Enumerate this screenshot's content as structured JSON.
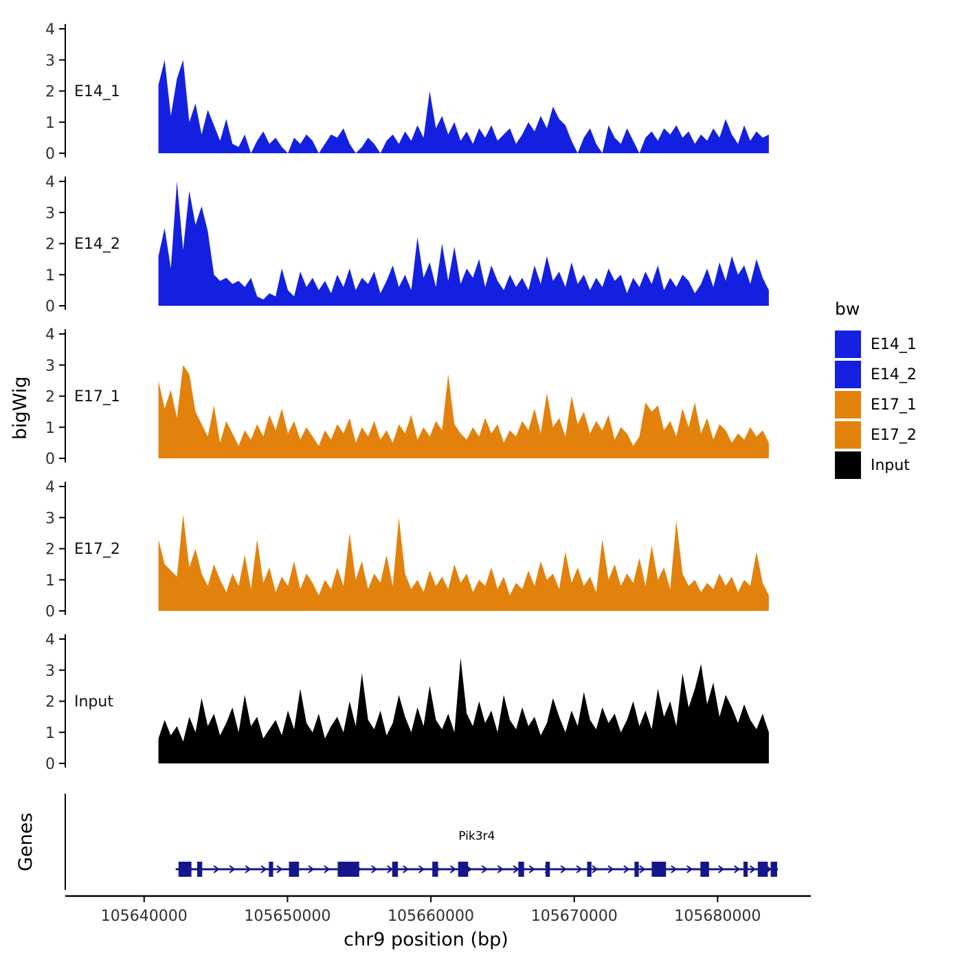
{
  "figure": {
    "y_axis_label": "bigWig",
    "genes_axis_label": "Genes",
    "x_axis_label": "chr9 position (bp)",
    "legend": {
      "title": "bw",
      "entries": [
        {
          "label": "E14_1",
          "color": "#1420E0"
        },
        {
          "label": "E14_2",
          "color": "#1420E0"
        },
        {
          "label": "E17_1",
          "color": "#E2820D"
        },
        {
          "label": "E17_2",
          "color": "#E2820D"
        },
        {
          "label": "Input",
          "color": "#000000"
        }
      ]
    }
  },
  "chart_data": {
    "type": "area",
    "title": "",
    "xlabel": "chr9 position (bp)",
    "ylabel": "bigWig",
    "x_domain": [
      105634500,
      105686500
    ],
    "x_ticks": [
      105640000,
      105650000,
      105660000,
      105670000,
      105680000
    ],
    "x_tick_labels": [
      "105640000",
      "105650000",
      "105660000",
      "105670000",
      "105680000"
    ],
    "y_ticks": [
      0,
      1,
      2,
      3,
      4
    ],
    "ylim": [
      0,
      4.3
    ],
    "grid": false,
    "legend_position": "right",
    "x_start": 105641000,
    "x_step": 430,
    "series": [
      {
        "name": "E14_1",
        "color": "#1420E0",
        "values": [
          2.2,
          3,
          1.2,
          2.4,
          3,
          1,
          1.6,
          0.6,
          1.4,
          0.9,
          0.4,
          1.1,
          0.3,
          0.2,
          0.6,
          0,
          0.4,
          0.7,
          0.3,
          0.5,
          0.2,
          0,
          0.5,
          0.3,
          0.6,
          0.4,
          0,
          0.3,
          0.6,
          0.5,
          0.8,
          0.3,
          0,
          0.2,
          0.5,
          0.3,
          0,
          0.4,
          0.6,
          0.3,
          0.7,
          0.4,
          0.9,
          0.5,
          2,
          0.8,
          1.2,
          0.6,
          1,
          0.4,
          0.7,
          0.3,
          0.8,
          0.5,
          0.9,
          0.4,
          0.6,
          0.8,
          0.3,
          0.6,
          1,
          0.7,
          1.2,
          0.8,
          1.5,
          1.1,
          0.9,
          0.4,
          0,
          0.5,
          0.8,
          0.3,
          0,
          0.9,
          0.5,
          0.3,
          0.8,
          0.4,
          0,
          0.5,
          0.7,
          0.4,
          0.8,
          0.6,
          0.9,
          0.5,
          0.7,
          0.3,
          0.6,
          0.4,
          0.8,
          0.5,
          1.1,
          0.6,
          0.3,
          0.9,
          0.4,
          0.7,
          0.5,
          0.6
        ]
      },
      {
        "name": "E14_2",
        "color": "#1420E0",
        "values": [
          1.6,
          2.5,
          1.2,
          4,
          1.8,
          3.7,
          2.6,
          3.2,
          2.4,
          1,
          0.8,
          0.9,
          0.7,
          0.8,
          0.6,
          0.9,
          0.3,
          0.2,
          0.4,
          0.3,
          1.2,
          0.5,
          0.3,
          1.1,
          0.6,
          0.9,
          0.5,
          0.8,
          0.4,
          1,
          0.6,
          1.2,
          0.5,
          0.9,
          0.7,
          1.1,
          0.4,
          0.8,
          1.3,
          0.6,
          1,
          0.5,
          2.2,
          0.9,
          1.4,
          0.6,
          2,
          0.8,
          1.9,
          0.7,
          1.2,
          0.9,
          1.5,
          0.6,
          1.3,
          0.8,
          0.5,
          1,
          0.6,
          0.9,
          0.5,
          1.3,
          0.7,
          1.6,
          0.8,
          1.1,
          0.6,
          1.4,
          0.7,
          1,
          0.5,
          0.9,
          0.6,
          1.2,
          0.8,
          1,
          0.4,
          0.9,
          0.6,
          1.1,
          0.7,
          1.3,
          0.5,
          0.9,
          0.6,
          1,
          0.8,
          0.4,
          0.7,
          1.2,
          0.6,
          1.4,
          0.8,
          1.6,
          1,
          1.3,
          0.7,
          1.5,
          0.9,
          0.5
        ]
      },
      {
        "name": "E17_1",
        "color": "#E2820D",
        "values": [
          2.5,
          1.6,
          2.2,
          1.3,
          3,
          2.7,
          1.5,
          1.1,
          0.7,
          1.7,
          0.5,
          1.2,
          0.8,
          0.4,
          0.9,
          0.6,
          1.1,
          0.7,
          1.4,
          0.9,
          1.6,
          0.8,
          1.2,
          0.6,
          1,
          0.7,
          0.4,
          0.9,
          0.6,
          1.1,
          0.8,
          1.3,
          0.5,
          1,
          0.7,
          1.2,
          0.6,
          0.9,
          0.5,
          1.1,
          0.8,
          1.4,
          0.6,
          1,
          0.7,
          1.2,
          0.9,
          2.7,
          1.1,
          0.8,
          0.6,
          1,
          0.7,
          1.3,
          0.8,
          1.1,
          0.5,
          0.9,
          0.7,
          1.2,
          0.9,
          1.6,
          0.8,
          2.1,
          1,
          1.3,
          0.7,
          2,
          1.1,
          1.5,
          0.8,
          1.2,
          0.9,
          1.4,
          0.6,
          1,
          0.8,
          0.4,
          0.7,
          1.8,
          1.5,
          1.7,
          0.9,
          1.2,
          0.7,
          1.6,
          1,
          1.8,
          0.8,
          1.3,
          0.6,
          1.1,
          0.9,
          0.5,
          0.8,
          0.6,
          1,
          0.7,
          0.9,
          0.5
        ]
      },
      {
        "name": "E17_2",
        "color": "#E2820D",
        "values": [
          2.3,
          1.5,
          1.3,
          1.1,
          3.1,
          1.4,
          2,
          1.2,
          0.8,
          1.5,
          1,
          0.6,
          1.2,
          0.8,
          1.8,
          0.7,
          2.3,
          0.9,
          1.4,
          0.6,
          1.1,
          0.8,
          1.6,
          0.7,
          1.2,
          0.9,
          0.5,
          1,
          0.7,
          1.4,
          0.8,
          2.5,
          1,
          1.6,
          0.7,
          1.2,
          0.9,
          1.8,
          0.8,
          3,
          1.2,
          0.7,
          1,
          0.6,
          1.3,
          0.8,
          1.1,
          0.7,
          1.5,
          0.9,
          1.2,
          0.6,
          1,
          0.8,
          1.4,
          0.7,
          1.1,
          0.5,
          0.9,
          0.7,
          1.3,
          0.8,
          1.6,
          1,
          1.2,
          0.7,
          1.9,
          0.9,
          1.4,
          0.8,
          1.1,
          0.6,
          2.3,
          1,
          1.5,
          0.8,
          1.2,
          0.9,
          1.7,
          0.8,
          2.1,
          1,
          1.4,
          0.7,
          2.9,
          1.2,
          0.8,
          1,
          0.6,
          0.9,
          0.7,
          1.2,
          0.8,
          1.1,
          0.6,
          1,
          0.8,
          1.9,
          0.9,
          0.5
        ]
      },
      {
        "name": "Input",
        "color": "#000000",
        "values": [
          0.8,
          1.4,
          0.9,
          1.2,
          0.7,
          1.5,
          1,
          2.1,
          1.2,
          1.6,
          0.9,
          1.3,
          1.8,
          1,
          2.2,
          1.2,
          1.5,
          0.8,
          1.1,
          1.4,
          0.9,
          1.7,
          1.1,
          2.4,
          1.3,
          1,
          1.6,
          0.8,
          1.2,
          1.5,
          1,
          2,
          1.2,
          2.9,
          1.4,
          1.1,
          1.7,
          0.9,
          1.3,
          2.2,
          1.5,
          1,
          1.8,
          1.2,
          2.5,
          1.4,
          1.1,
          1.6,
          1,
          3.4,
          1.6,
          1.2,
          2,
          1.3,
          1.7,
          1,
          2.2,
          1.4,
          1.1,
          1.8,
          1.2,
          1.5,
          0.9,
          1.3,
          2.1,
          1.5,
          1,
          1.7,
          1.2,
          2.3,
          1.4,
          1.1,
          1.8,
          1.3,
          1.6,
          1,
          1.4,
          2,
          1.2,
          1.7,
          1.1,
          2.4,
          1.5,
          2,
          1.2,
          2.9,
          1.8,
          2.4,
          3.2,
          1.9,
          2.6,
          1.5,
          2.2,
          1.8,
          1.3,
          1.9,
          1.4,
          1.1,
          1.6,
          1
        ]
      }
    ],
    "gene_track": {
      "label": "Pik3r4",
      "color": "#16168C",
      "start": 105642200,
      "end": 105684200,
      "strand": "+",
      "exons": [
        [
          105642400,
          900
        ],
        [
          105643700,
          350
        ],
        [
          105648700,
          300
        ],
        [
          105650100,
          700
        ],
        [
          105653500,
          1500
        ],
        [
          105657300,
          400
        ],
        [
          105660100,
          400
        ],
        [
          105661900,
          700
        ],
        [
          105666100,
          400
        ],
        [
          105668000,
          300
        ],
        [
          105670900,
          300
        ],
        [
          105674200,
          300
        ],
        [
          105675400,
          1000
        ],
        [
          105678800,
          600
        ],
        [
          105681800,
          300
        ],
        [
          105682800,
          700
        ],
        [
          105683700,
          450
        ]
      ]
    }
  }
}
